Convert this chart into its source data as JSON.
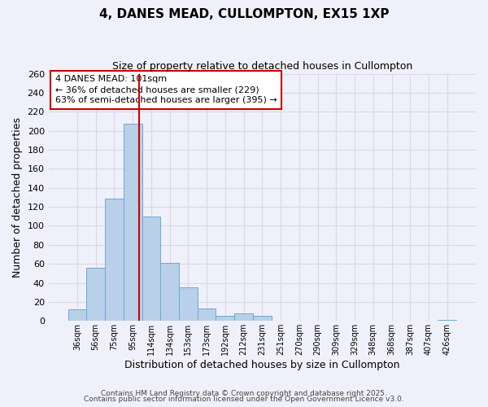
{
  "title": "4, DANES MEAD, CULLOMPTON, EX15 1XP",
  "subtitle": "Size of property relative to detached houses in Cullompton",
  "xlabel": "Distribution of detached houses by size in Cullompton",
  "ylabel": "Number of detached properties",
  "bar_color": "#b8d0e8",
  "bar_edge_color": "#6aaad4",
  "bin_labels": [
    "36sqm",
    "56sqm",
    "75sqm",
    "95sqm",
    "114sqm",
    "134sqm",
    "153sqm",
    "173sqm",
    "192sqm",
    "212sqm",
    "231sqm",
    "251sqm",
    "270sqm",
    "290sqm",
    "309sqm",
    "329sqm",
    "348sqm",
    "368sqm",
    "387sqm",
    "407sqm",
    "426sqm"
  ],
  "bin_values": [
    12,
    56,
    129,
    207,
    110,
    61,
    35,
    13,
    5,
    8,
    5,
    0,
    0,
    0,
    0,
    0,
    0,
    0,
    0,
    0,
    1
  ],
  "ylim": [
    0,
    260
  ],
  "yticks": [
    0,
    20,
    40,
    60,
    80,
    100,
    120,
    140,
    160,
    180,
    200,
    220,
    240,
    260
  ],
  "vline_color": "#cc0000",
  "vline_xindex": 3.35,
  "annotation_title": "4 DANES MEAD: 101sqm",
  "annotation_line1": "← 36% of detached houses are smaller (229)",
  "annotation_line2": "63% of semi-detached houses are larger (395) →",
  "annotation_box_color": "#ffffff",
  "annotation_box_edge": "#cc0000",
  "footer1": "Contains HM Land Registry data © Crown copyright and database right 2025.",
  "footer2": "Contains public sector information licensed under the Open Government Licence v3.0.",
  "background_color": "#f0f0fa",
  "grid_color": "#d8d8e8"
}
